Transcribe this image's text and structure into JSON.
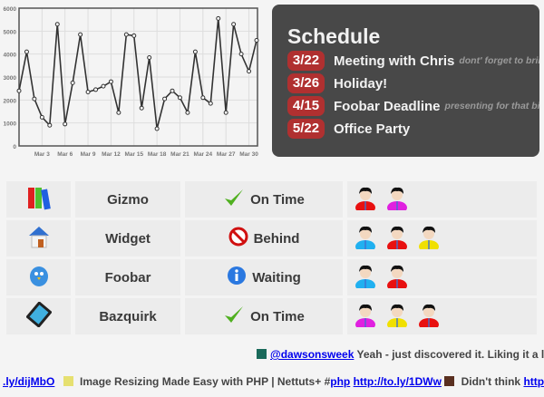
{
  "chart_data": {
    "type": "line",
    "x": [
      "Feb 28",
      "Mar 1",
      "Mar 2",
      "Mar 3",
      "Mar 4",
      "Mar 5",
      "Mar 6",
      "Mar 7",
      "Mar 8",
      "Mar 9",
      "Mar 10",
      "Mar 11",
      "Mar 12",
      "Mar 13",
      "Mar 14",
      "Mar 15",
      "Mar 16",
      "Mar 17",
      "Mar 18",
      "Mar 19",
      "Mar 20",
      "Mar 21",
      "Mar 22",
      "Mar 23",
      "Mar 24",
      "Mar 25",
      "Mar 26",
      "Mar 27",
      "Mar 28",
      "Mar 29",
      "Mar 30",
      "Mar 31"
    ],
    "values": [
      2400,
      4100,
      2050,
      1250,
      900,
      5300,
      950,
      2750,
      4850,
      2350,
      2450,
      2600,
      2800,
      1450,
      4850,
      4800,
      1650,
      3850,
      750,
      2050,
      2400,
      2100,
      1450,
      4100,
      2100,
      1850,
      5550,
      1450,
      5300,
      4000,
      3250,
      4600
    ],
    "xticks": [
      "Mar 3",
      "Mar 6",
      "Mar 9",
      "Mar 12",
      "Mar 15",
      "Mar 18",
      "Mar 21",
      "Mar 24",
      "Mar 27",
      "Mar 30"
    ],
    "yticks": [
      "0",
      "1000",
      "2000",
      "3000",
      "4000",
      "5000",
      "6000"
    ],
    "ylim": [
      0,
      6000
    ],
    "grid": true,
    "line_color": "#333333"
  },
  "schedule": {
    "title": "Schedule",
    "events": [
      {
        "date": "3/22",
        "title": "Meeting with Chris",
        "note": "dont' forget to brin"
      },
      {
        "date": "3/26",
        "title": "Holiday!",
        "note": ""
      },
      {
        "date": "4/15",
        "title": "Foobar Deadline",
        "note": "presenting for that big"
      },
      {
        "date": "5/22",
        "title": "Office Party",
        "note": ""
      }
    ],
    "badge_color": "#b03030"
  },
  "projects": [
    {
      "icon": "binders-icon",
      "name": "Gizmo",
      "status_icon": "checkmark-icon",
      "status": "On Time",
      "people": [
        "#e81010",
        "#e020e0"
      ]
    },
    {
      "icon": "house-icon",
      "name": "Widget",
      "status_icon": "no-entry-icon",
      "status": "Behind",
      "people": [
        "#20b0f0",
        "#e81010",
        "#f0e000"
      ]
    },
    {
      "icon": "bird-icon",
      "name": "Foobar",
      "status_icon": "info-icon",
      "status": "Waiting",
      "people": [
        "#20b0f0",
        "#e81010"
      ]
    },
    {
      "icon": "film-icon",
      "name": "Bazquirk",
      "status_icon": "checkmark-icon",
      "status": "On Time",
      "people": [
        "#e020e0",
        "#f0e000",
        "#e81010"
      ]
    }
  ],
  "ticker1": {
    "handle": "@dawsonsweek",
    "text": " Yeah - just discovered it. Liking it a lo"
  },
  "ticker2": {
    "link1": ".ly/dijMbO",
    "text1": " Image Resizing Made Easy with PHP | Nettuts+ #",
    "tag": "php",
    "link2": "http://to.ly/1DWw",
    "text2": " Didn't think ",
    "link3": "http://"
  }
}
